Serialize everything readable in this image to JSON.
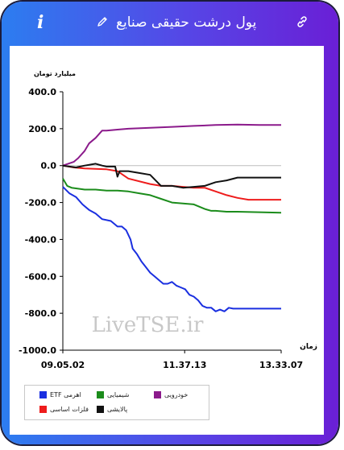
{
  "header": {
    "title": "پول درشت حقیقی صنایع",
    "info_icon": "info-icon",
    "edit_icon": "pencil-icon",
    "link_icon": "link-icon",
    "bg_colors": [
      "#2c7df0",
      "#6a1fd6"
    ]
  },
  "chart_data": {
    "type": "line",
    "ylabel": "میلیارد تومان",
    "xlabel": "زمان",
    "y_tick_labels": [
      "400.0",
      "200.0",
      "0.0",
      "-200.0",
      "-400.0",
      "-600.0",
      "-800.0",
      "-1000.0"
    ],
    "y_tick_values": [
      400,
      200,
      0,
      -200,
      -400,
      -600,
      -800,
      -1000
    ],
    "ylim": [
      -1000,
      400
    ],
    "x_tick_labels": [
      "09.05.02",
      "11.37.13",
      "13.33.07"
    ],
    "x_tick_values": [
      0,
      0.558,
      1
    ],
    "xlim": [
      0,
      1
    ],
    "grid": "horizontal line at 0",
    "watermark": "LiveTSE.ir",
    "series": [
      {
        "name": "ETF اهرمی",
        "color": "#1a2fe0",
        "x": [
          0,
          0.03,
          0.06,
          0.09,
          0.12,
          0.15,
          0.18,
          0.22,
          0.25,
          0.27,
          0.29,
          0.31,
          0.32,
          0.34,
          0.36,
          0.38,
          0.4,
          0.42,
          0.44,
          0.46,
          0.48,
          0.5,
          0.52,
          0.54,
          0.56,
          0.58,
          0.6,
          0.62,
          0.64,
          0.66,
          0.68,
          0.7,
          0.72,
          0.74,
          0.76,
          0.78,
          1.0
        ],
        "y": [
          -115,
          -150,
          -170,
          -210,
          -240,
          -260,
          -290,
          -300,
          -330,
          -330,
          -350,
          -400,
          -450,
          -480,
          -520,
          -550,
          -580,
          -600,
          -620,
          -640,
          -640,
          -630,
          -650,
          -660,
          -670,
          -700,
          -710,
          -730,
          -760,
          -770,
          -770,
          -790,
          -780,
          -790,
          -770,
          -775,
          -775
        ]
      },
      {
        "name": "شیمیایی",
        "color": "#1b8c1b",
        "x": [
          0,
          0.02,
          0.04,
          0.07,
          0.1,
          0.15,
          0.2,
          0.25,
          0.3,
          0.35,
          0.4,
          0.45,
          0.5,
          0.55,
          0.6,
          0.65,
          0.68,
          0.7,
          0.75,
          0.8,
          1.0
        ],
        "y": [
          -70,
          -110,
          -120,
          -125,
          -130,
          -130,
          -135,
          -135,
          -140,
          -150,
          -160,
          -180,
          -200,
          -205,
          -210,
          -235,
          -245,
          -245,
          -250,
          -250,
          -255
        ]
      },
      {
        "name": "خودرویی",
        "color": "#8b1a8b",
        "x": [
          0,
          0.05,
          0.07,
          0.1,
          0.12,
          0.15,
          0.18,
          0.2,
          0.25,
          0.3,
          0.4,
          0.5,
          0.6,
          0.7,
          0.8,
          0.9,
          1.0
        ],
        "y": [
          0,
          20,
          40,
          80,
          120,
          150,
          190,
          190,
          195,
          200,
          205,
          210,
          215,
          220,
          222,
          220,
          220
        ]
      },
      {
        "name": "فلزات اساسی",
        "color": "#ee1c1c",
        "x": [
          0,
          0.05,
          0.1,
          0.2,
          0.25,
          0.3,
          0.4,
          0.45,
          0.5,
          0.55,
          0.6,
          0.65,
          0.7,
          0.75,
          0.8,
          0.85,
          0.9,
          1.0
        ],
        "y": [
          0,
          -10,
          -15,
          -20,
          -30,
          -70,
          -100,
          -110,
          -110,
          -115,
          -120,
          -120,
          -140,
          -160,
          -175,
          -185,
          -185,
          -185
        ]
      },
      {
        "name": "پالایشی",
        "color": "#111111",
        "x": [
          0,
          0.06,
          0.1,
          0.15,
          0.18,
          0.2,
          0.24,
          0.25,
          0.26,
          0.3,
          0.35,
          0.4,
          0.45,
          0.5,
          0.55,
          0.6,
          0.65,
          0.7,
          0.75,
          0.8,
          1.0
        ],
        "y": [
          0,
          -10,
          0,
          10,
          0,
          -5,
          -5,
          -60,
          -30,
          -30,
          -40,
          -50,
          -110,
          -110,
          -120,
          -115,
          -110,
          -90,
          -80,
          -65,
          -65
        ]
      }
    ]
  }
}
